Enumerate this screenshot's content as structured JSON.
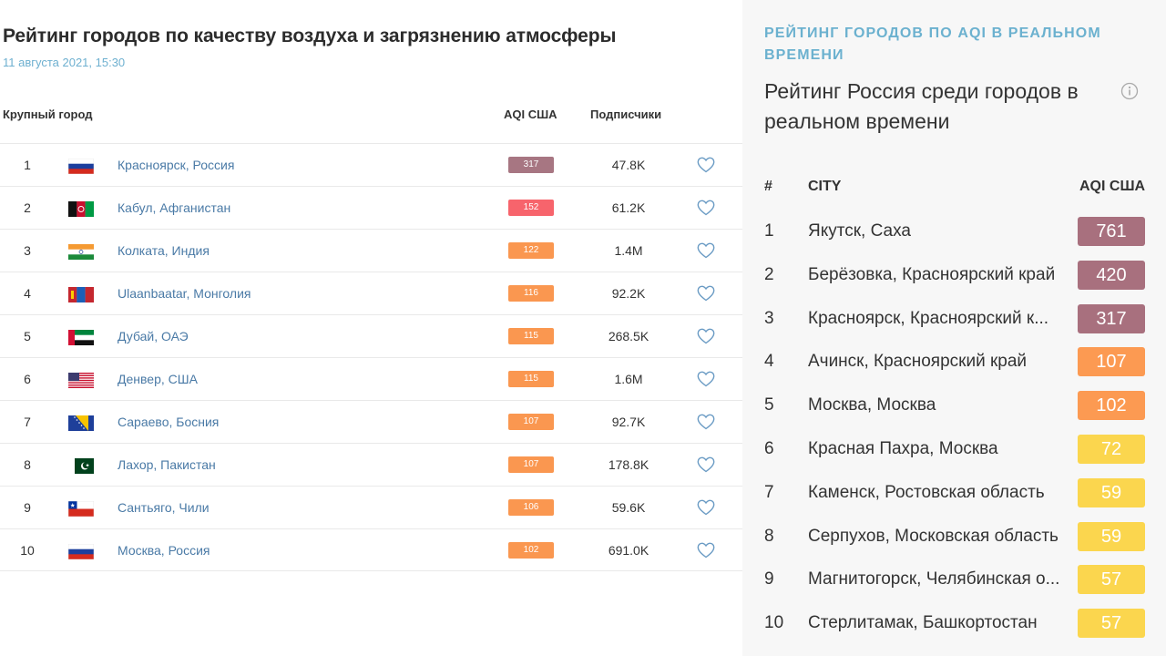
{
  "left": {
    "title": "Рейтинг городов по качеству воздуха и загрязнению атмосферы",
    "date": "11 августа 2021, 15:30",
    "headers": {
      "city": "Крупный город",
      "aqi": "AQI США",
      "subscribers": "Подписчики"
    },
    "rows": [
      {
        "rank": "1",
        "flag": "russia",
        "city": "Красноярск, Россия",
        "aqi": "317",
        "aqi_color": "#a77682",
        "subscribers": "47.8K"
      },
      {
        "rank": "2",
        "flag": "afghanistan",
        "city": "Кабул, Афганистан",
        "aqi": "152",
        "aqi_color": "#f7646c",
        "subscribers": "61.2K"
      },
      {
        "rank": "3",
        "flag": "india",
        "city": "Колката, Индия",
        "aqi": "122",
        "aqi_color": "#fa9750",
        "subscribers": "1.4M"
      },
      {
        "rank": "4",
        "flag": "mongolia",
        "city": "Ulaanbaatar, Монголия",
        "aqi": "116",
        "aqi_color": "#fa9750",
        "subscribers": "92.2K"
      },
      {
        "rank": "5",
        "flag": "uae",
        "city": "Дубай, ОАЭ",
        "aqi": "115",
        "aqi_color": "#fa9750",
        "subscribers": "268.5K"
      },
      {
        "rank": "6",
        "flag": "usa",
        "city": "Денвер, США",
        "aqi": "115",
        "aqi_color": "#fa9750",
        "subscribers": "1.6M"
      },
      {
        "rank": "7",
        "flag": "bosnia",
        "city": "Сараево, Босния",
        "aqi": "107",
        "aqi_color": "#fa9750",
        "subscribers": "92.7K"
      },
      {
        "rank": "8",
        "flag": "pakistan",
        "city": "Лахор, Пакистан",
        "aqi": "107",
        "aqi_color": "#fa9750",
        "subscribers": "178.8K"
      },
      {
        "rank": "9",
        "flag": "chile",
        "city": "Сантьяго, Чили",
        "aqi": "106",
        "aqi_color": "#fa9750",
        "subscribers": "59.6K"
      },
      {
        "rank": "10",
        "flag": "russia",
        "city": "Москва, Россия",
        "aqi": "102",
        "aqi_color": "#fa9750",
        "subscribers": "691.0K"
      }
    ],
    "icons": {
      "favorite": "heart-icon"
    }
  },
  "right": {
    "kicker": "РЕЙТИНГ ГОРОДОВ ПО AQI В РЕАЛЬНОМ ВРЕМЕНИ",
    "title": "Рейтинг Россия среди городов в реальном времени",
    "info_icon": "info-icon",
    "headers": {
      "num": "#",
      "city": "CITY",
      "aqi": "AQI США"
    },
    "rows": [
      {
        "rank": "1",
        "city": "Якутск, Саха",
        "aqi": "761",
        "aqi_color": "#a8707e"
      },
      {
        "rank": "2",
        "city": "Берёзовка, Красноярский край",
        "aqi": "420",
        "aqi_color": "#a8707e"
      },
      {
        "rank": "3",
        "city": "Красноярск, Красноярский к...",
        "aqi": "317",
        "aqi_color": "#a8707e"
      },
      {
        "rank": "4",
        "city": "Ачинск, Красноярский край",
        "aqi": "107",
        "aqi_color": "#fc9a52"
      },
      {
        "rank": "5",
        "city": "Москва, Москва",
        "aqi": "102",
        "aqi_color": "#fc9a52"
      },
      {
        "rank": "6",
        "city": "Красная Пахра, Москва",
        "aqi": "72",
        "aqi_color": "#fbd64e"
      },
      {
        "rank": "7",
        "city": "Каменск, Ростовская область",
        "aqi": "59",
        "aqi_color": "#fbd64e"
      },
      {
        "rank": "8",
        "city": "Серпухов, Московская область",
        "aqi": "59",
        "aqi_color": "#fbd64e"
      },
      {
        "rank": "9",
        "city": "Магнитогорск, Челябинская о...",
        "aqi": "57",
        "aqi_color": "#fbd64e"
      },
      {
        "rank": "10",
        "city": "Стерлитамак, Башкортостан",
        "aqi": "57",
        "aqi_color": "#fbd64e"
      }
    ]
  }
}
